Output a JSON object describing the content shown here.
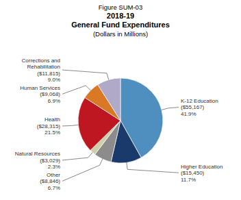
{
  "chart_data": {
    "type": "pie",
    "title": "Figure SUM-03\n2018-19\nGeneral Fund Expenditures\n(Dollars in Millions)",
    "categories": [
      "K-12 Education\n($55,167)",
      "Higher Education\n($15,450)",
      "Other\n($8,846)",
      "Natural Resources\n($3,029)",
      "Health\n($28,315)",
      "Human Services\n($9,068)",
      "Corrections and\nRehabilitation\n($11,815)"
    ],
    "values": [
      41.9,
      11.7,
      6.7,
      2.3,
      21.5,
      6.9,
      9.0
    ],
    "value_labels": [
      "41.9%",
      "11.7%",
      "6.7%",
      "2.3%",
      "21.5%",
      "6.9%",
      "9.0%"
    ],
    "colors": [
      "#4f8fc0",
      "#1a3a6b",
      "#8c8c8c",
      "#cfd0a8",
      "#bf1722",
      "#d97925",
      "#b0aac8"
    ]
  }
}
